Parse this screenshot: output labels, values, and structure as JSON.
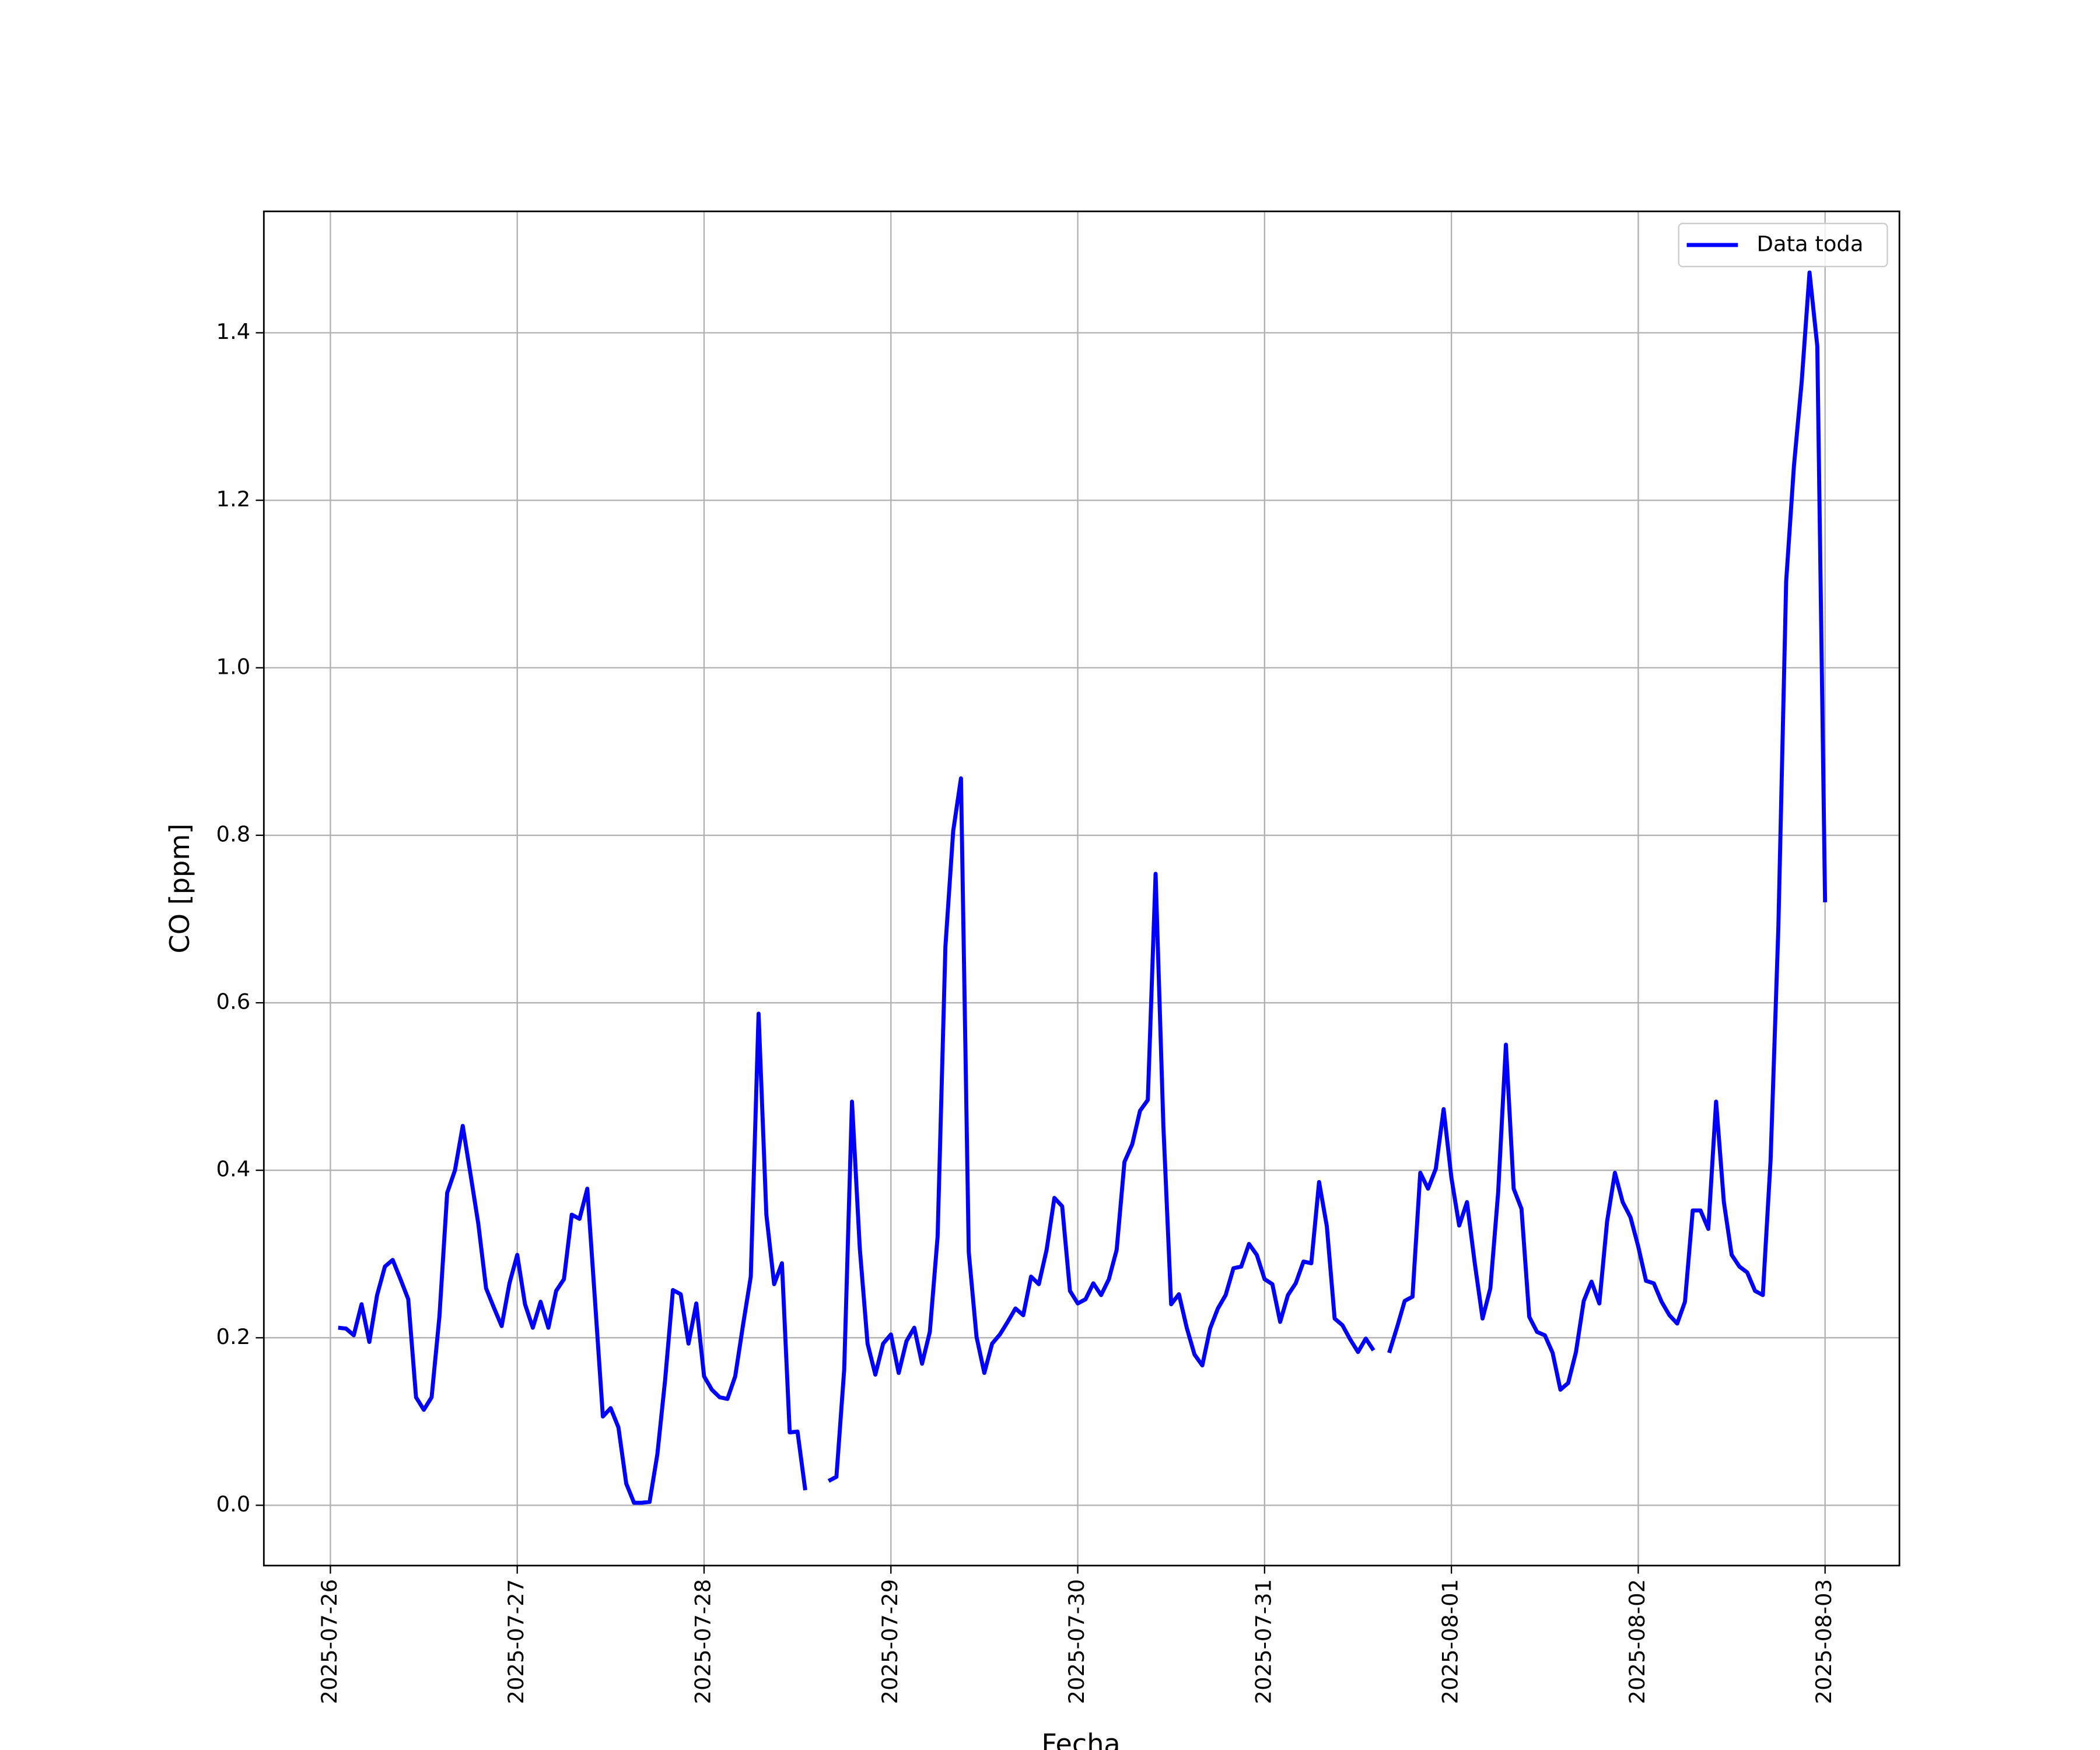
{
  "chart_data": {
    "type": "line",
    "x_label": "Fecha",
    "y_label": "CO [ppm]",
    "x": [
      "2025-07-26 01:00",
      "2025-07-26 02:00",
      "2025-07-26 03:00",
      "2025-07-26 04:00",
      "2025-07-26 05:00",
      "2025-07-26 06:00",
      "2025-07-26 07:00",
      "2025-07-26 08:00",
      "2025-07-26 09:00",
      "2025-07-26 10:00",
      "2025-07-26 11:00",
      "2025-07-26 12:00",
      "2025-07-26 13:00",
      "2025-07-26 14:00",
      "2025-07-26 15:00",
      "2025-07-26 16:00",
      "2025-07-26 17:00",
      "2025-07-26 18:00",
      "2025-07-26 19:00",
      "2025-07-26 20:00",
      "2025-07-26 21:00",
      "2025-07-26 22:00",
      "2025-07-26 23:00",
      "2025-07-27 00:00",
      "2025-07-27 01:00",
      "2025-07-27 02:00",
      "2025-07-27 03:00",
      "2025-07-27 04:00",
      "2025-07-27 05:00",
      "2025-07-27 06:00",
      "2025-07-27 07:00",
      "2025-07-27 08:00",
      "2025-07-27 09:00",
      "2025-07-27 10:00",
      "2025-07-27 11:00",
      "2025-07-27 12:00",
      "2025-07-27 13:00",
      "2025-07-27 14:00",
      "2025-07-27 15:00",
      "2025-07-27 16:00",
      "2025-07-27 17:00",
      "2025-07-27 18:00",
      "2025-07-27 19:00",
      "2025-07-27 20:00",
      "2025-07-27 21:00",
      "2025-07-27 22:00",
      "2025-07-27 23:00",
      "2025-07-28 00:00",
      "2025-07-28 01:00",
      "2025-07-28 02:00",
      "2025-07-28 03:00",
      "2025-07-28 04:00",
      "2025-07-28 05:00",
      "2025-07-28 06:00",
      "2025-07-28 07:00",
      "2025-07-28 08:00",
      "2025-07-28 09:00",
      "2025-07-28 10:00",
      "2025-07-28 11:00",
      "2025-07-28 12:00",
      "2025-07-28 13:00",
      "2025-07-28 14:00",
      "2025-07-28 15:00",
      "2025-07-28 16:00",
      "2025-07-28 17:00",
      "2025-07-28 18:00",
      "2025-07-28 19:00",
      "2025-07-28 20:00",
      "2025-07-28 21:00",
      "2025-07-28 22:00",
      "2025-07-28 23:00",
      "2025-07-29 00:00",
      "2025-07-29 01:00",
      "2025-07-29 02:00",
      "2025-07-29 03:00",
      "2025-07-29 04:00",
      "2025-07-29 05:00",
      "2025-07-29 06:00",
      "2025-07-29 07:00",
      "2025-07-29 08:00",
      "2025-07-29 09:00",
      "2025-07-29 10:00",
      "2025-07-29 11:00",
      "2025-07-29 12:00",
      "2025-07-29 13:00",
      "2025-07-29 14:00",
      "2025-07-29 15:00",
      "2025-07-29 16:00",
      "2025-07-29 17:00",
      "2025-07-29 18:00",
      "2025-07-29 19:00",
      "2025-07-29 20:00",
      "2025-07-29 21:00",
      "2025-07-29 22:00",
      "2025-07-29 23:00",
      "2025-07-30 00:00",
      "2025-07-30 01:00",
      "2025-07-30 02:00",
      "2025-07-30 03:00",
      "2025-07-30 04:00",
      "2025-07-30 05:00",
      "2025-07-30 06:00",
      "2025-07-30 07:00",
      "2025-07-30 08:00",
      "2025-07-30 09:00",
      "2025-07-30 10:00",
      "2025-07-30 11:00",
      "2025-07-30 12:00",
      "2025-07-30 13:00",
      "2025-07-30 14:00",
      "2025-07-30 15:00",
      "2025-07-30 16:00",
      "2025-07-30 17:00",
      "2025-07-30 18:00",
      "2025-07-30 19:00",
      "2025-07-30 20:00",
      "2025-07-30 21:00",
      "2025-07-30 22:00",
      "2025-07-30 23:00",
      "2025-07-31 00:00",
      "2025-07-31 01:00",
      "2025-07-31 02:00",
      "2025-07-31 03:00",
      "2025-07-31 04:00",
      "2025-07-31 05:00",
      "2025-07-31 06:00",
      "2025-07-31 07:00",
      "2025-07-31 08:00",
      "2025-07-31 09:00",
      "2025-07-31 10:00",
      "2025-07-31 11:00",
      "2025-07-31 12:00",
      "2025-07-31 13:00",
      "2025-07-31 14:00",
      "2025-07-31 15:00",
      "2025-07-31 16:00",
      "2025-07-31 17:00",
      "2025-07-31 18:00",
      "2025-07-31 19:00",
      "2025-07-31 20:00",
      "2025-07-31 21:00",
      "2025-07-31 22:00",
      "2025-07-31 23:00",
      "2025-08-01 00:00",
      "2025-08-01 01:00",
      "2025-08-01 02:00",
      "2025-08-01 03:00",
      "2025-08-01 04:00",
      "2025-08-01 05:00",
      "2025-08-01 06:00",
      "2025-08-01 07:00",
      "2025-08-01 08:00",
      "2025-08-01 09:00",
      "2025-08-01 10:00",
      "2025-08-01 11:00",
      "2025-08-01 12:00",
      "2025-08-01 13:00",
      "2025-08-01 14:00",
      "2025-08-01 15:00",
      "2025-08-01 16:00",
      "2025-08-01 17:00",
      "2025-08-01 18:00",
      "2025-08-01 19:00",
      "2025-08-01 20:00",
      "2025-08-01 21:00",
      "2025-08-01 22:00",
      "2025-08-01 23:00",
      "2025-08-02 00:00",
      "2025-08-02 01:00",
      "2025-08-02 02:00",
      "2025-08-02 03:00",
      "2025-08-02 04:00",
      "2025-08-02 05:00",
      "2025-08-02 06:00",
      "2025-08-02 07:00",
      "2025-08-02 08:00",
      "2025-08-02 09:00",
      "2025-08-02 10:00",
      "2025-08-02 11:00",
      "2025-08-02 12:00",
      "2025-08-02 13:00",
      "2025-08-02 14:00",
      "2025-08-02 15:00",
      "2025-08-02 16:00",
      "2025-08-02 17:00",
      "2025-08-02 18:00",
      "2025-08-02 19:00",
      "2025-08-02 20:00",
      "2025-08-02 21:00",
      "2025-08-02 22:00",
      "2025-08-02 23:00",
      "2025-08-03 00:00"
    ],
    "series": [
      {
        "name": "Data toda",
        "color": "#0000ff",
        "values": [
          0.212,
          0.211,
          0.203,
          0.24,
          0.195,
          0.251,
          0.285,
          0.293,
          0.27,
          0.246,
          0.129,
          0.114,
          0.129,
          0.225,
          0.373,
          0.4,
          0.453,
          0.395,
          0.336,
          0.259,
          0.236,
          0.214,
          0.265,
          0.299,
          0.24,
          0.212,
          0.243,
          0.212,
          0.256,
          0.27,
          0.347,
          0.342,
          0.378,
          0.243,
          0.106,
          0.116,
          0.093,
          0.026,
          0.003,
          0.003,
          0.004,
          0.061,
          0.15,
          0.257,
          0.252,
          0.193,
          0.241,
          0.154,
          0.138,
          0.129,
          0.127,
          0.154,
          0.215,
          0.273,
          0.587,
          0.347,
          0.264,
          0.289,
          0.087,
          0.088,
          0.018,
          null,
          null,
          0.029,
          0.034,
          0.162,
          0.482,
          0.307,
          0.193,
          0.156,
          0.193,
          0.204,
          0.158,
          0.196,
          0.212,
          0.169,
          0.207,
          0.321,
          0.667,
          0.805,
          0.868,
          0.302,
          0.201,
          0.158,
          0.193,
          0.204,
          0.219,
          0.235,
          0.227,
          0.273,
          0.264,
          0.305,
          0.367,
          0.357,
          0.256,
          0.241,
          0.246,
          0.265,
          0.251,
          0.27,
          0.305,
          0.41,
          0.431,
          0.471,
          0.484,
          0.754,
          0.453,
          0.24,
          0.252,
          0.212,
          0.18,
          0.167,
          0.211,
          0.235,
          0.251,
          0.283,
          0.285,
          0.312,
          0.299,
          0.27,
          0.264,
          0.219,
          0.251,
          0.265,
          0.291,
          0.289,
          0.386,
          0.333,
          0.223,
          0.215,
          0.198,
          0.183,
          0.199,
          0.185,
          null,
          0.182,
          0.212,
          0.244,
          0.249,
          0.397,
          0.378,
          0.402,
          0.473,
          0.391,
          0.334,
          0.362,
          0.289,
          0.223,
          0.259,
          0.373,
          0.55,
          0.378,
          0.354,
          0.225,
          0.207,
          0.203,
          0.182,
          0.138,
          0.146,
          0.183,
          0.244,
          0.267,
          0.241,
          0.339,
          0.397,
          0.362,
          0.344,
          0.309,
          0.268,
          0.265,
          0.243,
          0.227,
          0.217,
          0.243,
          0.352,
          0.352,
          0.33,
          0.482,
          0.362,
          0.299,
          0.285,
          0.278,
          0.256,
          0.251,
          0.412,
          0.69,
          1.103,
          1.241,
          1.342,
          1.472,
          1.384,
          0.72
        ]
      }
    ],
    "xlim": [
      "2025-07-25 15:27",
      "2025-08-03 09:33"
    ],
    "xticks": [
      "2025-07-26",
      "2025-07-27",
      "2025-07-28",
      "2025-07-29",
      "2025-07-30",
      "2025-07-31",
      "2025-08-01",
      "2025-08-02",
      "2025-08-03"
    ],
    "ylim": [
      -0.072,
      1.545
    ],
    "yticks": [
      {
        "value": 0,
        "label": "0.0"
      },
      0.2,
      0.4,
      0.6,
      0.8,
      {
        "value": 1,
        "label": "1.0"
      },
      1.2,
      1.4
    ],
    "grid": true,
    "legend": "upper right"
  }
}
